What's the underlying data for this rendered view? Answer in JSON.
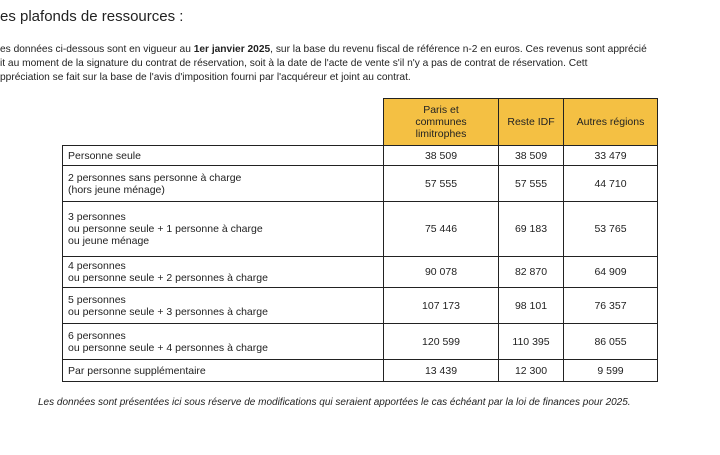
{
  "header": {
    "title": "es plafonds de ressources :",
    "intro_lines": [
      [
        "es données ci-dessous sont en vigueur au ",
        "1er janvier 2025",
        ", sur la base du revenu fiscal de référence n-2 en euros. Ces revenus sont apprécié"
      ],
      [
        "it au moment de la signature du contrat de réservation, soit à la date de l'acte de vente s'il n'y a pas de contrat de réservation. Cett"
      ],
      [
        "ppréciation se fait sur la base de l'avis d'imposition fourni par l'acquéreur et joint au contrat."
      ]
    ]
  },
  "table": {
    "columns": [
      [
        "Paris et",
        "communes",
        "limitrophes"
      ],
      [
        "Reste IDF"
      ],
      [
        "Autres régions"
      ]
    ],
    "rows": [
      {
        "label": [
          "Personne seule"
        ],
        "values": [
          "38 509",
          "38 509",
          "33 479"
        ]
      },
      {
        "label": [
          "2 personnes sans personne à charge",
          "(hors jeune ménage)"
        ],
        "values": [
          "57 555",
          "57 555",
          "44 710"
        ]
      },
      {
        "label": [
          "3 personnes",
          "ou personne seule + 1 personne à charge",
          "ou jeune ménage"
        ],
        "values": [
          "75 446",
          "69 183",
          "53 765"
        ]
      },
      {
        "label": [
          "4 personnes",
          "ou personne seule + 2 personnes à charge"
        ],
        "values": [
          "90 078",
          "82 870",
          "64 909"
        ]
      },
      {
        "label": [
          "5 personnes",
          "ou personne seule + 3 personnes à charge"
        ],
        "values": [
          "107 173",
          "98 101",
          "76 357"
        ]
      },
      {
        "label": [
          "6 personnes",
          "ou personne seule + 4 personnes à charge"
        ],
        "values": [
          "120 599",
          "110 395",
          "86 055"
        ]
      },
      {
        "label": [
          "Par personne supplémentaire"
        ],
        "values": [
          "13 439",
          "12 300",
          "9 599"
        ]
      }
    ]
  },
  "footnote": "Les données sont présentées ici sous réserve de modifications qui seraient apportées le cas échéant par la loi de finances pour 2025."
}
